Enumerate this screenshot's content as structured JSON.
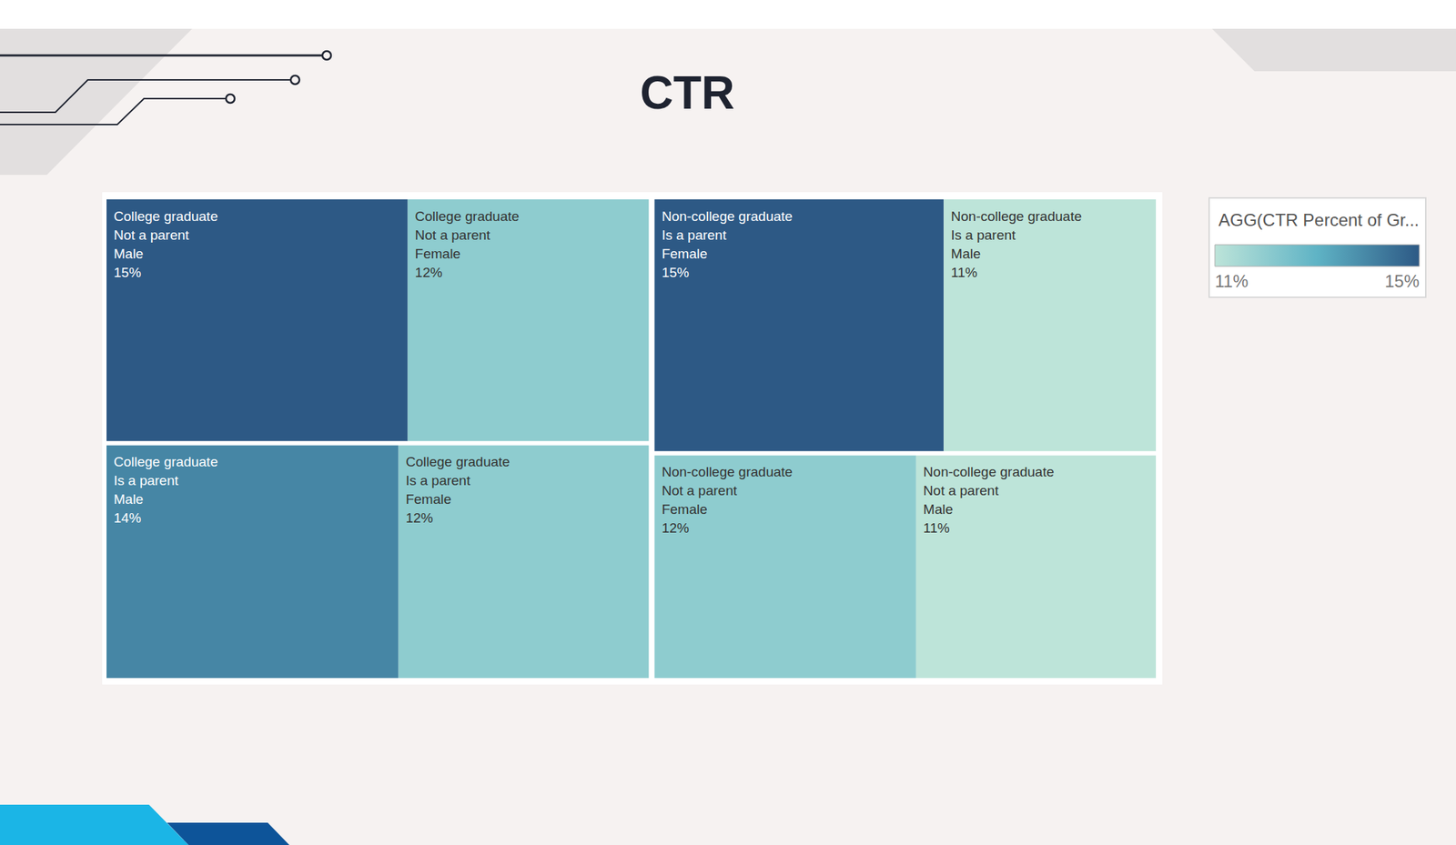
{
  "chart_data": {
    "type": "treemap",
    "title": "CTR",
    "tree": [
      {
        "name": "College graduate",
        "children": [
          {
            "name": "Not a parent",
            "children": [
              {
                "name": "Male",
                "value": 15,
                "value_label": "15%"
              },
              {
                "name": "Female",
                "value": 12,
                "value_label": "12%"
              }
            ]
          },
          {
            "name": "Is a parent",
            "children": [
              {
                "name": "Male",
                "value": 14,
                "value_label": "14%"
              },
              {
                "name": "Female",
                "value": 12,
                "value_label": "12%"
              }
            ]
          }
        ]
      },
      {
        "name": "Non-college graduate",
        "children": [
          {
            "name": "Is a parent",
            "children": [
              {
                "name": "Female",
                "value": 15,
                "value_label": "15%"
              },
              {
                "name": "Male",
                "value": 11,
                "value_label": "11%"
              }
            ]
          },
          {
            "name": "Not a parent",
            "children": [
              {
                "name": "Female",
                "value": 12,
                "value_label": "12%"
              },
              {
                "name": "Male",
                "value": 11,
                "value_label": "11%"
              }
            ]
          }
        ]
      }
    ],
    "color_scale": {
      "title": "AGG(CTR Percent of Gr...",
      "range": [
        11,
        15
      ],
      "ticks": [
        {
          "value": 11,
          "label": "11%"
        },
        {
          "value": 15,
          "label": "15%"
        }
      ],
      "colors": [
        "#bde4d9",
        "#5fb3c5",
        "#2d5985"
      ]
    }
  }
}
